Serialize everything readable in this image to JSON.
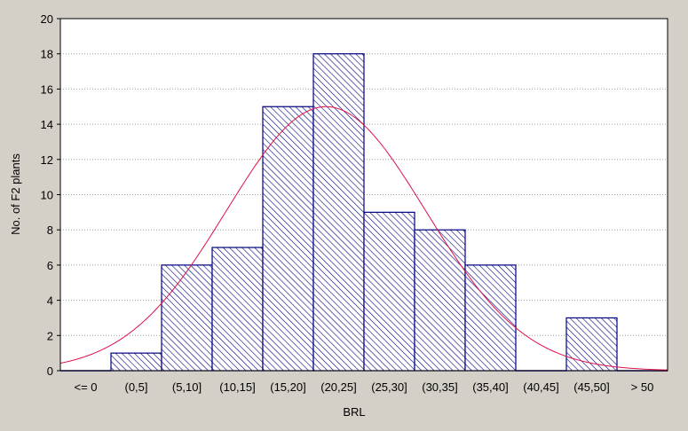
{
  "chart_data": {
    "type": "bar",
    "categories": [
      "<= 0",
      "(0,5]",
      "(5,10]",
      "(10,15]",
      "(15,20]",
      "(20,25]",
      "(25,30]",
      "(30,35]",
      "(35,40]",
      "(40,45]",
      "(45,50]",
      "> 50"
    ],
    "values": [
      0,
      1,
      6,
      7,
      15,
      18,
      9,
      8,
      6,
      0,
      3,
      0
    ],
    "xlabel": "BRL",
    "ylabel": "No. of F2 plants",
    "ylim": [
      0,
      20
    ],
    "yticks": [
      "0",
      "2",
      "4",
      "6",
      "8",
      "10",
      "12",
      "14",
      "16",
      "18",
      "20"
    ],
    "grid": "horizontal dotted",
    "bar_style": "diagonal hatch",
    "fitted_curve": {
      "type": "normal",
      "peak": 15,
      "peak_position": "(20,25]"
    },
    "colors": {
      "background": "#d4d0c8",
      "plot": "#ffffff",
      "bar": "#000080",
      "curve": "#e0104a",
      "grid": "#a0a0a0"
    }
  }
}
